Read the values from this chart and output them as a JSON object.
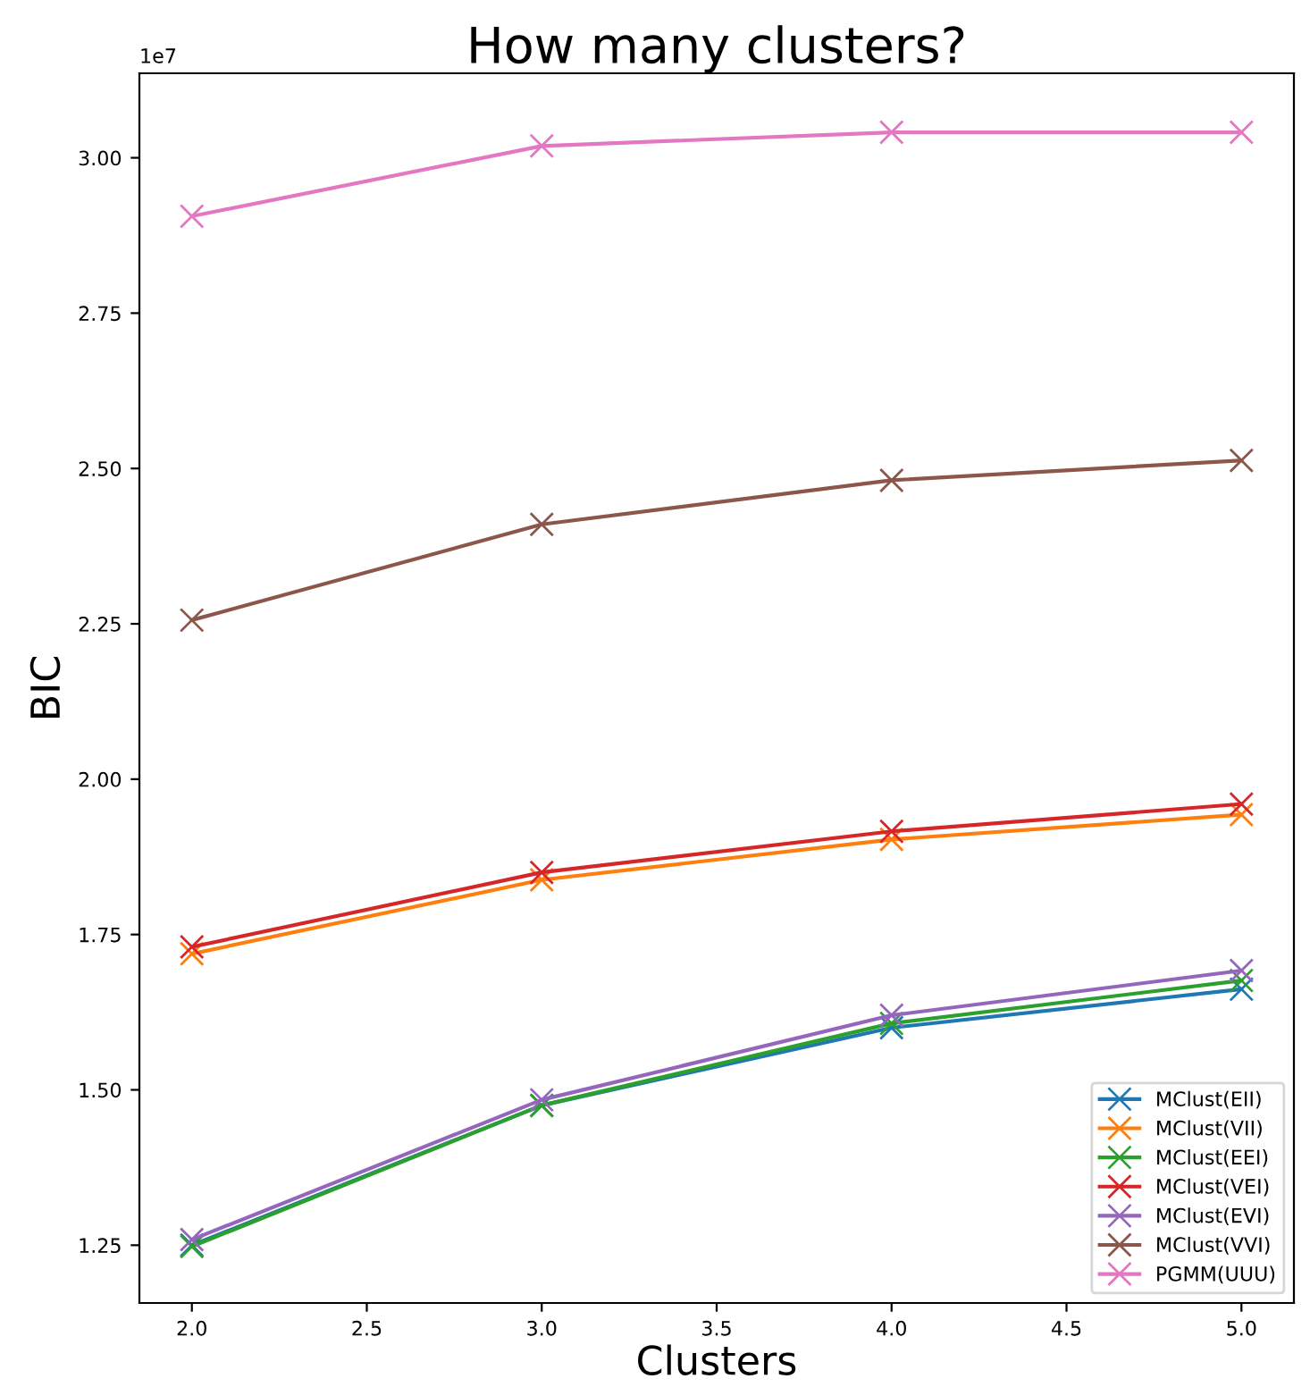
{
  "chart_data": {
    "type": "line",
    "title": "How many clusters?",
    "xlabel": "Clusters",
    "ylabel": "BIC",
    "annotations": [
      "1e7"
    ],
    "x": [
      2.0,
      3.0,
      4.0,
      5.0
    ],
    "series": [
      {
        "name": "MClust(EII)",
        "color": "#1f77b4",
        "values": [
          1.25,
          1.475,
          1.6,
          1.662
        ]
      },
      {
        "name": "MClust(VII)",
        "color": "#ff7f0e",
        "values": [
          1.719,
          1.838,
          1.903,
          1.943
        ]
      },
      {
        "name": "MClust(EEI)",
        "color": "#2ca02c",
        "values": [
          1.248,
          1.475,
          1.607,
          1.676
        ]
      },
      {
        "name": "MClust(VEI)",
        "color": "#d62728",
        "values": [
          1.73,
          1.85,
          1.916,
          1.96
        ]
      },
      {
        "name": "MClust(EVI)",
        "color": "#9467bd",
        "values": [
          1.259,
          1.484,
          1.62,
          1.692
        ]
      },
      {
        "name": "MClust(VVI)",
        "color": "#8c564b",
        "values": [
          2.256,
          2.41,
          2.481,
          2.513
        ]
      },
      {
        "name": "PGMM(UUU)",
        "color": "#e377c2",
        "values": [
          2.906,
          3.019,
          3.041,
          3.041
        ]
      }
    ],
    "xlim": [
      1.85,
      5.15
    ],
    "ylim": [
      1.157,
      3.136
    ],
    "xticks": [
      {
        "value": 2,
        "label": "2.0"
      },
      {
        "value": 2.5,
        "label": "2.5"
      },
      {
        "value": 3,
        "label": "3.0"
      },
      {
        "value": 3.5,
        "label": "3.5"
      },
      {
        "value": 4,
        "label": "4.0"
      },
      {
        "value": 4.5,
        "label": "4.5"
      },
      {
        "value": 5,
        "label": "5.0"
      }
    ],
    "yticks": [
      {
        "value": 1.25,
        "label": "1.25"
      },
      {
        "value": 1.5,
        "label": "1.50"
      },
      {
        "value": 1.75,
        "label": "1.75"
      },
      {
        "value": 2.0,
        "label": "2.00"
      },
      {
        "value": 2.25,
        "label": "2.25"
      },
      {
        "value": 2.5,
        "label": "2.50"
      },
      {
        "value": 2.75,
        "label": "2.75"
      },
      {
        "value": 3.0,
        "label": "3.00"
      }
    ],
    "legend": "bottom right",
    "grid": false,
    "marker": "cross",
    "line_style": "solid"
  }
}
